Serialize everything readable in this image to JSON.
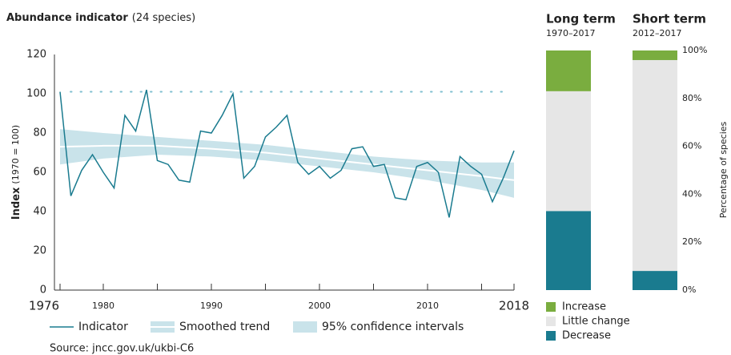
{
  "chart_data": [
    {
      "type": "line",
      "title": "Abundance indicator",
      "subtitle": "(24 species)",
      "ylabel": "Index",
      "ylabel_note": "(1970 = 100)",
      "source": "Source: jncc.gov.uk/ukbi-C6",
      "xlim": [
        1976,
        2018
      ],
      "xticks": [
        1976,
        1980,
        1990,
        2000,
        2010,
        2018
      ],
      "xticks_minor": [
        1985,
        1995,
        2005,
        2015
      ],
      "ylim": [
        0,
        120
      ],
      "yticks": [
        0,
        20,
        40,
        60,
        80,
        100,
        120
      ],
      "reference_line": 101,
      "series": [
        {
          "name": "Indicator",
          "color": "#1a7b8f",
          "x": [
            1976,
            1977,
            1978,
            1979,
            1980,
            1981,
            1982,
            1983,
            1984,
            1985,
            1986,
            1987,
            1988,
            1989,
            1990,
            1991,
            1992,
            1993,
            1994,
            1995,
            1996,
            1997,
            1998,
            1999,
            2000,
            2001,
            2002,
            2003,
            2004,
            2005,
            2006,
            2007,
            2008,
            2009,
            2010,
            2011,
            2012,
            2013,
            2014,
            2015,
            2016,
            2017,
            2018
          ],
          "values": [
            101,
            48,
            61,
            69,
            60,
            52,
            89,
            81,
            102,
            66,
            64,
            56,
            55,
            81,
            80,
            89,
            100,
            57,
            63,
            78,
            83,
            89,
            65,
            59,
            63,
            57,
            61,
            72,
            73,
            63,
            64,
            47,
            46,
            63,
            65,
            60,
            37,
            68,
            63,
            59,
            45,
            57,
            71
          ]
        },
        {
          "name": "Smoothed trend",
          "color": "#ffffff",
          "x": [
            1976,
            1980,
            1985,
            1990,
            1995,
            2000,
            2005,
            2010,
            2015,
            2018
          ],
          "values": [
            73,
            73.5,
            73.5,
            72,
            70,
            67,
            64,
            61,
            58,
            56
          ]
        },
        {
          "name": "95% confidence intervals",
          "color": "#c9e3ea",
          "x": [
            1976,
            1980,
            1985,
            1990,
            1995,
            2000,
            2005,
            2010,
            2015,
            2018
          ],
          "lower": [
            64,
            67,
            69,
            68,
            66,
            63,
            60,
            56,
            51,
            47
          ],
          "upper": [
            82,
            80,
            78,
            76,
            74,
            71,
            68,
            66,
            65,
            65
          ]
        }
      ]
    },
    {
      "type": "stacked_bar",
      "categories": [
        "Long term",
        "Short term"
      ],
      "category_notes": [
        "1970–2017",
        "2012–2017"
      ],
      "ylabel": "Percentage of species",
      "ylim": [
        0,
        100
      ],
      "yticks": [
        {
          "value": 0,
          "label": "0%"
        },
        {
          "value": 20,
          "label": "20%"
        },
        {
          "value": 40,
          "label": "40%"
        },
        {
          "value": 60,
          "label": "60%"
        },
        {
          "value": 80,
          "label": "80%"
        },
        {
          "value": 100,
          "label": "100%"
        }
      ],
      "series": [
        {
          "name": "Increase",
          "color": "#7aad3f",
          "values": [
            17,
            4
          ]
        },
        {
          "name": "Little change",
          "color": "#e6e6e6",
          "values": [
            50,
            88
          ]
        },
        {
          "name": "Decrease",
          "color": "#1a7b8f",
          "values": [
            33,
            8
          ]
        }
      ]
    }
  ]
}
